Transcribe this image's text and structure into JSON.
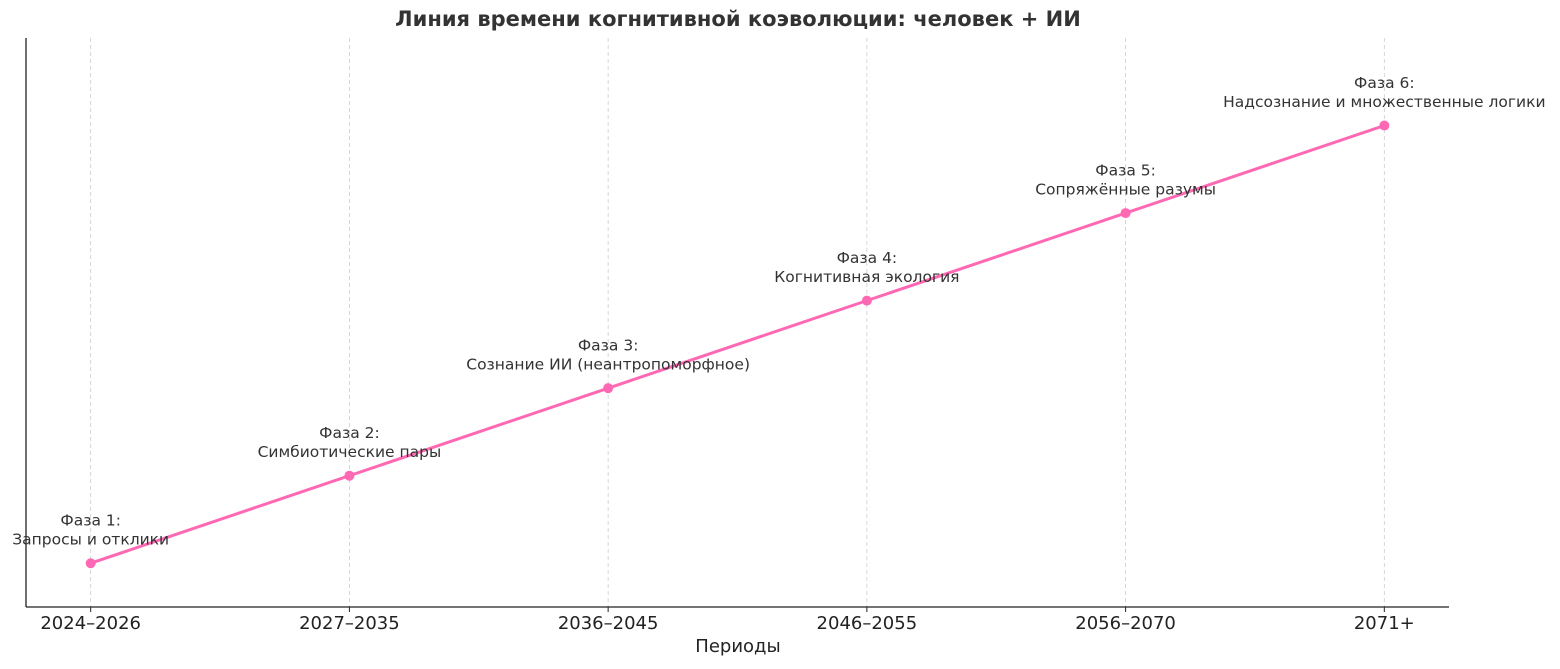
{
  "chart_data": {
    "type": "line",
    "title": "Линия времени когнитивной коэволюции: человек + ИИ",
    "x_label": "Периоды",
    "categories": [
      "2024–2026",
      "2027–2035",
      "2036–2045",
      "2046–2055",
      "2056–2070",
      "2071+"
    ],
    "values": [
      1,
      2,
      3,
      4,
      5,
      6
    ],
    "annotations": [
      [
        "Фаза 1:",
        "Запросы и отклики"
      ],
      [
        "Фаза 2:",
        "Симбиотические пары"
      ],
      [
        "Фаза 3:",
        "Сознание ИИ (неантропоморфное)"
      ],
      [
        "Фаза 4:",
        "Когнитивная экология"
      ],
      [
        "Фаза 5:",
        "Сопряжённые разумы"
      ],
      [
        "Фаза 6:",
        "Надсознание и множественные логики"
      ]
    ],
    "color": "#ff69b4",
    "ylim": [
      0.5,
      7
    ],
    "grid": true
  }
}
